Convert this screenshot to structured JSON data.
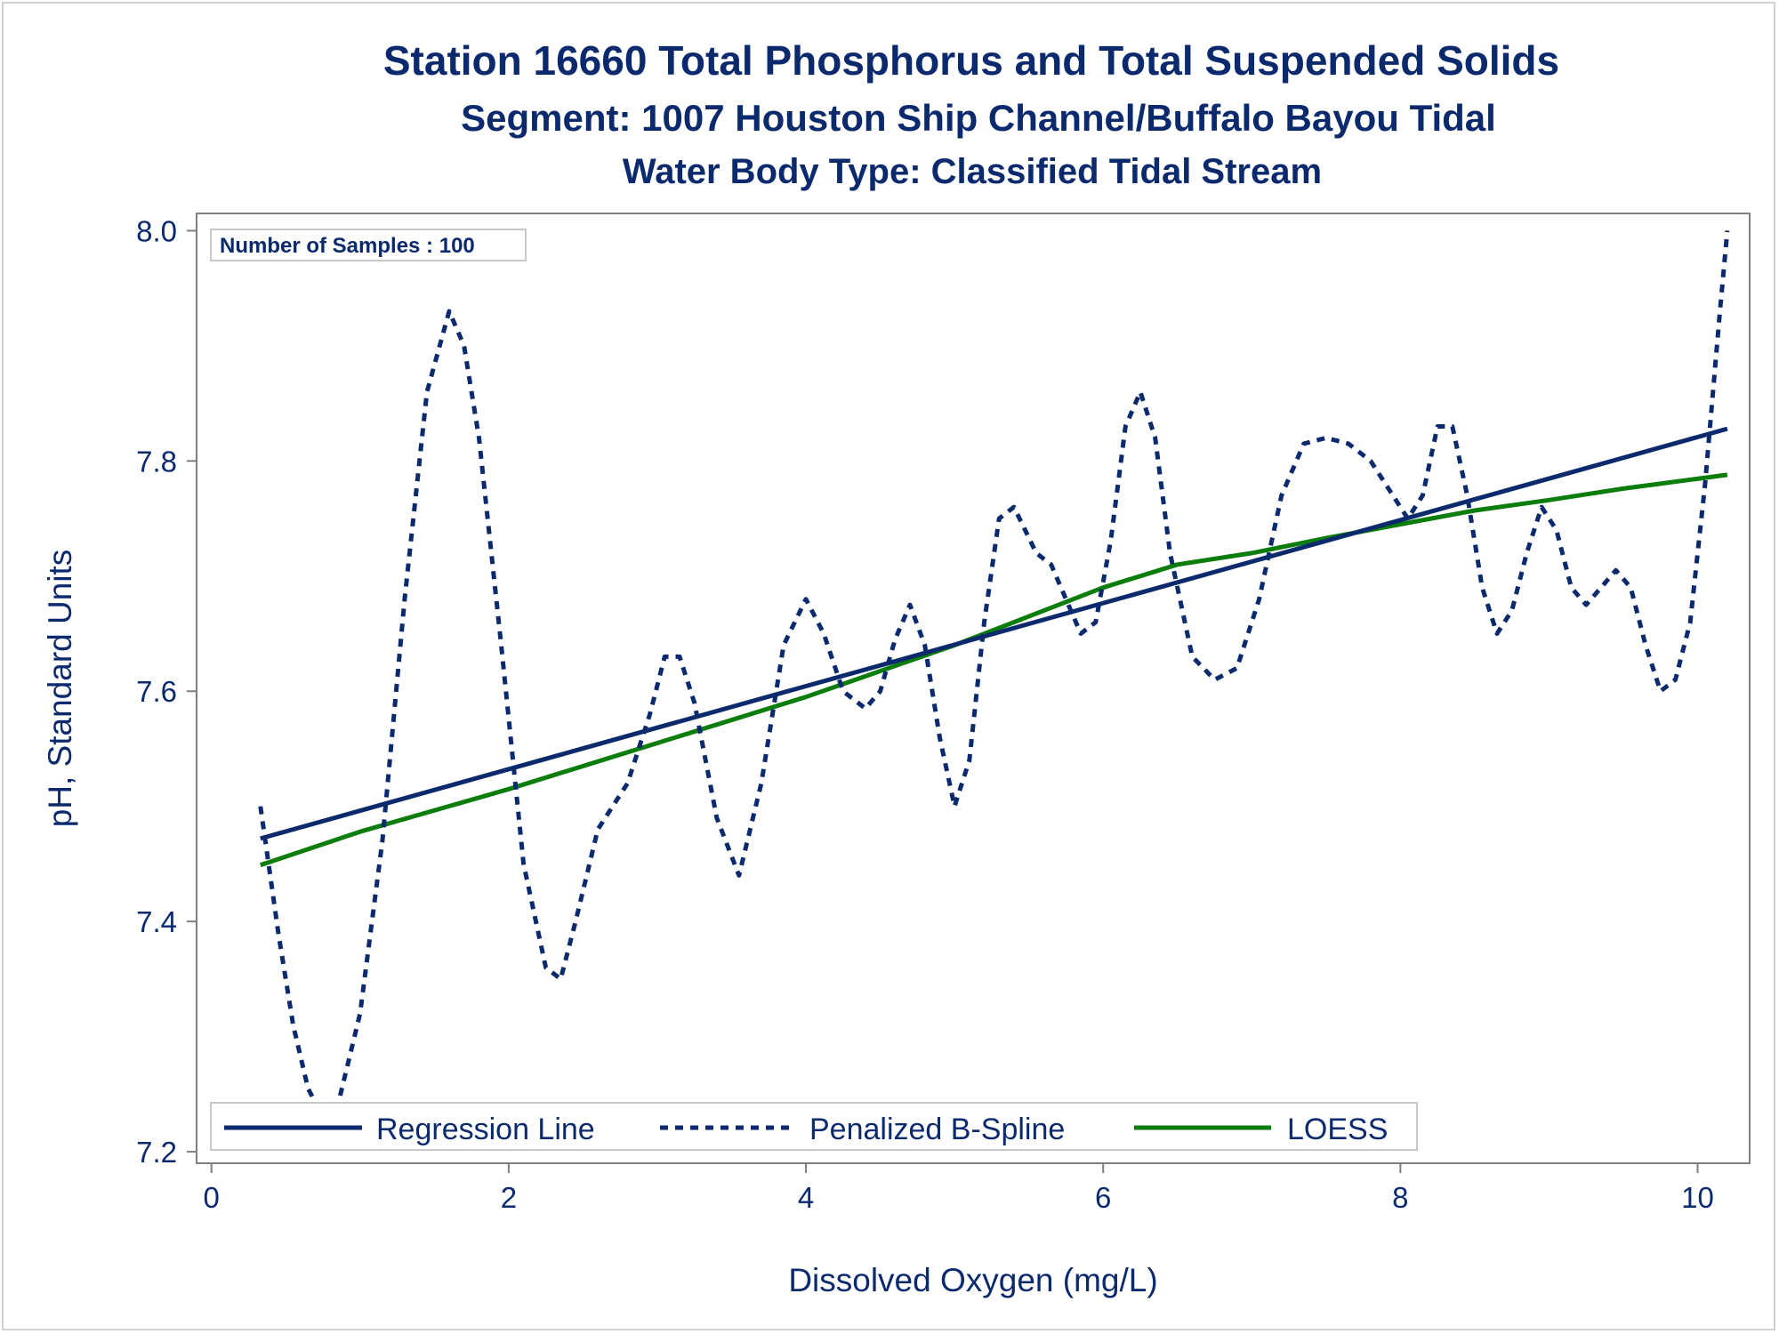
{
  "titles": {
    "line1": "Station 16660  Total Phosphorus and Total Suspended Solids",
    "line2": "Segment: 1007  Houston Ship Channel/Buffalo Bayou Tidal",
    "line3": "Water Body Type: Classified Tidal Stream"
  },
  "inset": {
    "text": "Number of Samples : 100"
  },
  "colors": {
    "navy": "#0b2a6e",
    "green": "#0a7d0a",
    "axis": "#7f7f7f"
  },
  "chart_data": {
    "type": "line",
    "title": "Station 16660  Total Phosphorus and Total Suspended Solids",
    "xlabel": "Dissolved Oxygen (mg/L)",
    "ylabel": "pH, Standard Units",
    "xlim": [
      -0.1,
      10.35
    ],
    "ylim": [
      7.19,
      8.015
    ],
    "x_ticks": [
      0,
      2,
      4,
      6,
      8,
      10
    ],
    "x_tick_labels": [
      "0",
      "2",
      "4",
      "6",
      "8",
      "10"
    ],
    "y_ticks": [
      7.2,
      7.4,
      7.6,
      7.8,
      8.0
    ],
    "y_tick_labels": [
      "7.2",
      "7.4",
      "7.6",
      "7.8",
      "8.0"
    ],
    "grid": false,
    "legend_position": "bottom-inside",
    "series": [
      {
        "name": "Regression Line",
        "style": "solid",
        "color": "#0b2a6e",
        "x": [
          0.33,
          10.2
        ],
        "y": [
          7.472,
          7.828
        ]
      },
      {
        "name": "Penalized B-Spline",
        "style": "dashed",
        "color": "#0b2a6e",
        "x": [
          0.33,
          0.45,
          0.55,
          0.65,
          0.75,
          0.85,
          1.0,
          1.15,
          1.3,
          1.45,
          1.6,
          1.7,
          1.8,
          1.95,
          2.1,
          2.25,
          2.35,
          2.45,
          2.6,
          2.7,
          2.8,
          2.95,
          3.05,
          3.15,
          3.25,
          3.4,
          3.55,
          3.7,
          3.85,
          4.0,
          4.12,
          4.25,
          4.4,
          4.5,
          4.6,
          4.7,
          4.8,
          4.9,
          5.0,
          5.1,
          5.2,
          5.3,
          5.4,
          5.55,
          5.65,
          5.75,
          5.85,
          5.95,
          6.05,
          6.15,
          6.25,
          6.35,
          6.45,
          6.6,
          6.75,
          6.9,
          7.05,
          7.2,
          7.35,
          7.5,
          7.65,
          7.8,
          7.95,
          8.05,
          8.15,
          8.25,
          8.35,
          8.45,
          8.55,
          8.65,
          8.75,
          8.85,
          8.95,
          9.05,
          9.15,
          9.25,
          9.35,
          9.45,
          9.55,
          9.65,
          9.75,
          9.85,
          9.95,
          10.05,
          10.15,
          10.2
        ],
        "y": [
          7.5,
          7.39,
          7.31,
          7.255,
          7.23,
          7.24,
          7.32,
          7.47,
          7.68,
          7.86,
          7.93,
          7.9,
          7.82,
          7.64,
          7.45,
          7.36,
          7.35,
          7.4,
          7.48,
          7.5,
          7.52,
          7.58,
          7.63,
          7.63,
          7.59,
          7.49,
          7.44,
          7.52,
          7.64,
          7.68,
          7.65,
          7.6,
          7.585,
          7.6,
          7.645,
          7.675,
          7.64,
          7.56,
          7.5,
          7.54,
          7.66,
          7.75,
          7.76,
          7.72,
          7.71,
          7.68,
          7.65,
          7.66,
          7.73,
          7.83,
          7.86,
          7.82,
          7.72,
          7.63,
          7.61,
          7.62,
          7.68,
          7.77,
          7.815,
          7.82,
          7.815,
          7.8,
          7.77,
          7.75,
          7.77,
          7.83,
          7.83,
          7.77,
          7.69,
          7.65,
          7.67,
          7.72,
          7.76,
          7.74,
          7.69,
          7.675,
          7.69,
          7.705,
          7.69,
          7.64,
          7.6,
          7.61,
          7.66,
          7.78,
          7.93,
          8.0
        ]
      },
      {
        "name": "LOESS",
        "style": "solid",
        "color": "#0a7d0a",
        "x": [
          0.33,
          1.0,
          2.0,
          3.0,
          4.0,
          5.0,
          5.5,
          6.0,
          6.5,
          7.0,
          7.5,
          8.0,
          8.5,
          9.0,
          9.5,
          10.2
        ],
        "y": [
          7.449,
          7.478,
          7.515,
          7.555,
          7.595,
          7.64,
          7.665,
          7.69,
          7.71,
          7.72,
          7.733,
          7.745,
          7.757,
          7.766,
          7.776,
          7.788
        ]
      }
    ]
  }
}
